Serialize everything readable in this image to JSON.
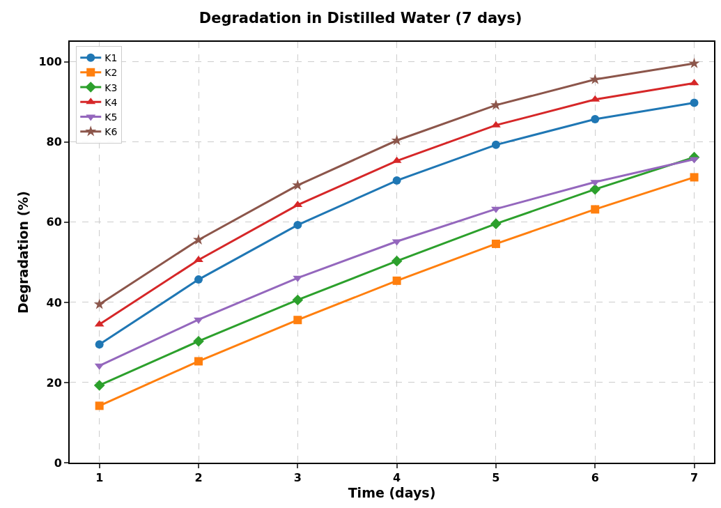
{
  "chart_data": {
    "type": "line",
    "title": "Degradation in Distilled Water (7 days)",
    "xlabel": "Time (days)",
    "ylabel": "Degradation (%)",
    "x": [
      1,
      2,
      3,
      4,
      5,
      6,
      7
    ],
    "series": [
      {
        "name": "K1",
        "color": "#1f77b4",
        "marker": "circle",
        "values": [
          29.5,
          45.7,
          59.3,
          70.4,
          79.3,
          85.7,
          89.8
        ]
      },
      {
        "name": "K2",
        "color": "#ff7f0e",
        "marker": "square",
        "values": [
          14.2,
          25.3,
          35.6,
          45.4,
          54.6,
          63.2,
          71.2
        ]
      },
      {
        "name": "K3",
        "color": "#2ca02c",
        "marker": "diamond",
        "values": [
          19.3,
          30.3,
          40.6,
          50.3,
          59.6,
          68.2,
          76.2
        ]
      },
      {
        "name": "K4",
        "color": "#d62728",
        "marker": "triangle",
        "values": [
          34.5,
          50.6,
          64.3,
          75.3,
          84.2,
          90.6,
          94.7
        ]
      },
      {
        "name": "K5",
        "color": "#9467bd",
        "marker": "triangle-down",
        "values": [
          24.2,
          35.7,
          46.1,
          55.2,
          63.3,
          70.0,
          75.7
        ]
      },
      {
        "name": "K6",
        "color": "#8c564b",
        "marker": "star",
        "values": [
          39.5,
          55.6,
          69.2,
          80.4,
          89.2,
          95.6,
          99.6
        ]
      }
    ],
    "xlim": [
      0.7,
      7.2
    ],
    "xticks": [
      1,
      2,
      3,
      4,
      5,
      6,
      7
    ],
    "ylim": [
      0,
      105
    ],
    "yticks": [
      0,
      20,
      40,
      60,
      80,
      100
    ],
    "grid": true,
    "legend": "top left",
    "line_style": "solid"
  }
}
